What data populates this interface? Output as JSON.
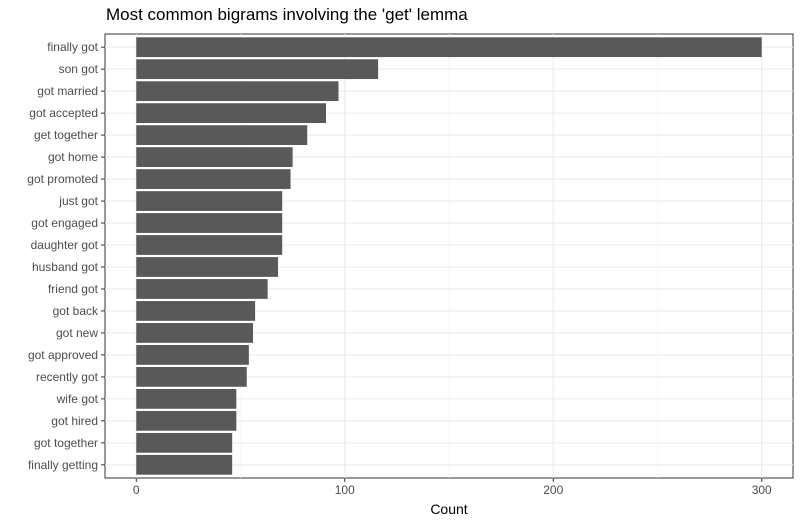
{
  "chart_data": {
    "type": "bar",
    "orientation": "horizontal",
    "title": "Most common bigrams involving the 'get' lemma",
    "xlabel": "Count",
    "ylabel": "",
    "xlim": [
      -15,
      315
    ],
    "xticks": [
      0,
      100,
      200,
      300
    ],
    "grid": true,
    "bar_color": "#595959",
    "categories": [
      "finally got",
      "son got",
      "got married",
      "got accepted",
      "get together",
      "got home",
      "got promoted",
      "just got",
      "got engaged",
      "daughter got",
      "husband got",
      "friend got",
      "got back",
      "got new",
      "got approved",
      "recently got",
      "wife got",
      "got hired",
      "got together",
      "finally getting"
    ],
    "values": [
      300,
      116,
      97,
      91,
      82,
      75,
      74,
      70,
      70,
      70,
      68,
      63,
      57,
      56,
      54,
      53,
      48,
      48,
      46,
      46
    ]
  }
}
